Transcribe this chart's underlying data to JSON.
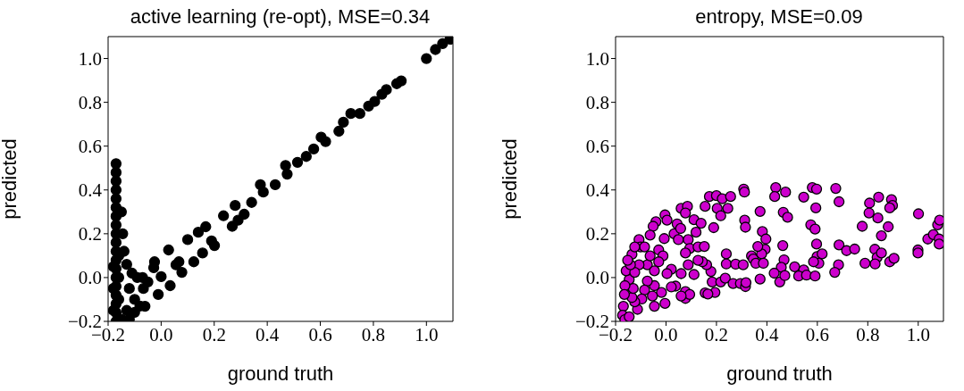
{
  "chart_data": [
    {
      "type": "scatter",
      "title": "active learning (re-opt), MSE=0.34",
      "xlabel": "ground truth",
      "ylabel": "predicted",
      "xlim": [
        -0.2,
        1.1
      ],
      "ylim": [
        -0.2,
        1.1
      ],
      "xticks": [
        {
          "value": -0.2,
          "label": "−0.2"
        },
        {
          "value": 0,
          "label": "0.0"
        },
        0.2,
        0.4,
        0.6,
        0.8,
        {
          "value": 1,
          "label": "1.0"
        }
      ],
      "yticks": [
        {
          "value": -0.2,
          "label": "−0.2"
        },
        {
          "value": 0,
          "label": "0.0"
        },
        0.2,
        0.4,
        0.6,
        0.8,
        {
          "value": 1,
          "label": "1.0"
        }
      ],
      "grid": false,
      "marker": "circle",
      "series": [
        {
          "color": "#000000",
          "x": [
            -0.17,
            -0.17,
            -0.17,
            -0.17,
            -0.17,
            -0.17,
            -0.17,
            -0.17,
            -0.17,
            -0.17,
            -0.17,
            -0.17,
            -0.17,
            -0.17,
            -0.17,
            -0.17,
            -0.17,
            -0.17,
            -0.17,
            -0.16,
            -0.16,
            -0.16,
            -0.18,
            -0.18,
            -0.18,
            -0.15,
            -0.145,
            -0.14,
            -0.13,
            -0.11,
            -0.09,
            -0.07,
            -0.05,
            -0.12,
            -0.1,
            -0.13,
            -0.15,
            -0.12,
            -0.08,
            -0.067,
            -0.061,
            -0.1,
            -0.025,
            -0.028,
            0.028,
            0.067,
            0.1,
            0.14,
            0.168,
            0.19,
            0.235,
            0.268,
            0.279,
            0.29,
            0.313,
            0.341,
            0.374,
            0.385,
            0.43,
            0.469,
            0.475,
            0.514,
            0.547,
            0.575,
            0.603,
            0.62,
            0.67,
            0.687,
            0.715,
            0.749,
            0.782,
            0.805,
            0.832,
            0.849,
            0.888,
            0.905,
            1.0,
            1.034,
            1.061,
            1.089,
            -0.011,
            0.034,
            0.078,
            0.123,
            0.156,
            0.201,
            0,
            0.056
          ],
          "values": [
            -0.2,
            -0.16,
            -0.12,
            -0.08,
            -0.04,
            0,
            0.04,
            0.08,
            0.12,
            0.16,
            0.2,
            0.24,
            0.28,
            0.32,
            0.36,
            0.4,
            0.44,
            0.48,
            0.52,
            -0.1,
            0.0,
            0.1,
            -0.15,
            -0.05,
            0.05,
            0.3,
            0.2,
            0.12,
            0.06,
            0.02,
            0.0,
            0.0,
            -0.02,
            -0.05,
            -0.1,
            -0.15,
            -0.19,
            -0.19,
            -0.13,
            -0.05,
            -0.131,
            -0.159,
            0.072,
            0.045,
            0.126,
            0.072,
            0.173,
            0.207,
            0.232,
            0.167,
            0.282,
            0.234,
            0.329,
            0.262,
            0.289,
            0.343,
            0.424,
            0.39,
            0.424,
            0.512,
            0.472,
            0.526,
            0.553,
            0.587,
            0.641,
            0.621,
            0.668,
            0.709,
            0.749,
            0.749,
            0.783,
            0.804,
            0.837,
            0.858,
            0.885,
            0.898,
            1.0,
            1.041,
            1.068,
            1.088,
            -0.077,
            -0.037,
            0.024,
            0.072,
            0.112,
            0.146,
            0.004,
            0.058
          ]
        }
      ]
    },
    {
      "type": "scatter",
      "title": "entropy, MSE=0.09",
      "xlabel": "ground truth",
      "ylabel": "predicted",
      "xlim": [
        -0.2,
        1.1
      ],
      "ylim": [
        -0.2,
        1.1
      ],
      "xticks": [
        {
          "value": -0.2,
          "label": "−0.2"
        },
        {
          "value": 0,
          "label": "0.0"
        },
        0.2,
        0.4,
        0.6,
        0.8,
        {
          "value": 1,
          "label": "1.0"
        }
      ],
      "yticks": [
        {
          "value": -0.2,
          "label": "−0.2"
        },
        {
          "value": 0,
          "label": "0.0"
        },
        0.2,
        0.4,
        0.6,
        0.8,
        {
          "value": 1,
          "label": "1.0"
        }
      ],
      "grid": false,
      "marker": "circle",
      "series": [
        {
          "color": "#cc00cc",
          "x": [
            0.308,
            0.311,
            0.435,
            0.431,
            0.474,
            0.58,
            0.597,
            0.673,
            0.686,
            0.546,
            0.172,
            0.2,
            0.223,
            0.256,
            0.155,
            0.203,
            0.245,
            0.217,
            0.06,
            0.085,
            0.077,
            -0.004,
            0.004,
            0.111,
            0.139,
            0.119,
            0.044,
            0.032,
            0.058,
            0.049,
            -0.007,
            -0.04,
            -0.051,
            -0.063,
            -0.107,
            -0.101,
            -0.135,
            -0.085,
            -0.124,
            -0.029,
            -0.012,
            0.088,
            0.094,
            0.077,
            0.127,
            0.152,
            0.189,
            0.312,
            0.315,
            0.373,
            0.382,
            0.396,
            0.393,
            0.379,
            0.364,
            0.239,
            0.239,
            0.276,
            0.306,
            0.339,
            0.346,
            0.356,
            0.386,
            0.465,
            0.482,
            0.463,
            0.468,
            0.457,
            0.429,
            0.451,
            0.471,
            0.51,
            0.546,
            0.526,
            0.557,
            0.591,
            0.574,
            0.591,
            0.594,
            0.597,
            0.599,
            0.606,
            0.619,
            0.585,
            0.686,
            0.716,
            0.748,
            0.684,
            0.669,
            0.778,
            0.807,
            0.805,
            0.843,
            0.84,
            0.854,
            0.828,
            0.837,
            0.854,
            0.829,
            0.789,
            0.881,
            0.894,
            0.898,
            0.887,
            0.887,
            0.904,
            1.001,
            0.999,
            0.999,
            1.038,
            1.06,
            1.077,
            1.085,
            1.083,
            1.083,
            0.183,
            0.217,
            0.194,
            0.155,
            0.166,
            0.235,
            0.266,
            0.295,
            0.315,
            0.317,
            0.373,
            0.178,
            0.161,
            0.144,
            0.127,
            0.111,
            0.088,
            0.06,
            0.021,
            0.004,
            0.038,
            0.077,
            0.077,
            0.094,
            0.06,
            0.021,
            -0.004,
            -0.018,
            -0.046,
            -0.046,
            -0.054,
            -0.074,
            -0.085,
            -0.096,
            -0.113,
            -0.124,
            -0.135,
            -0.13,
            -0.146,
            -0.158,
            -0.163,
            -0.165,
            -0.169,
            -0.172,
            -0.163,
            -0.146,
            -0.074,
            -0.046,
            -0.107,
            -0.124,
            -0.141,
            -0.152,
            -0.029,
            -0.063
          ],
          "values": [
            0.404,
            0.39,
            0.411,
            0.37,
            0.39,
            0.411,
            0.404,
            0.407,
            0.346,
            0.367,
            0.37,
            0.374,
            0.36,
            0.37,
            0.325,
            0.316,
            0.316,
            0.282,
            0.316,
            0.325,
            0.295,
            0.286,
            0.262,
            0.264,
            0.248,
            0.207,
            0.245,
            0.2,
            0.224,
            0.173,
            0.178,
            0.255,
            0.234,
            0.194,
            0.173,
            0.14,
            0.106,
            0.14,
            0.14,
            0.126,
            0.099,
            0.173,
            0.133,
            0.112,
            0.14,
            0.142,
            0.228,
            0.262,
            0.23,
            0.302,
            0.21,
            0.176,
            0.129,
            0.108,
            0.142,
            0.108,
            0.062,
            0.061,
            0.058,
            0.099,
            0.085,
            0.065,
            0.065,
            0.298,
            0.275,
            0.146,
            0.081,
            0.047,
            0.02,
            -0.02,
            0.009,
            0.049,
            0.035,
            0.007,
            0.011,
            0.007,
            0.241,
            0.221,
            0.318,
            0.153,
            0.096,
            0.065,
            0.108,
            0.072,
            0.149,
            0.123,
            0.13,
            0.058,
            0.024,
            0.234,
            0.34,
            0.295,
            0.367,
            0.272,
            0.191,
            0.129,
            0.092,
            0.112,
            0.062,
            0.065,
            0.232,
            0.356,
            0.329,
            0.318,
            0.072,
            0.088,
            0.291,
            0.126,
            0.112,
            0.176,
            0.196,
            0.241,
            0.262,
            0.176,
            0.153,
            -0.02,
            -0.02,
            -0.068,
            -0.07,
            -0.075,
            -0.003,
            -0.027,
            -0.027,
            -0.041,
            -0.023,
            -0.007,
            0.028,
            0.058,
            0.072,
            0.079,
            0.014,
            0.058,
            0.018,
            0.038,
            0.018,
            -0.039,
            -0.064,
            -0.095,
            -0.077,
            -0.084,
            -0.043,
            -0.118,
            -0.068,
            -0.037,
            -0.131,
            -0.084,
            -0.016,
            -0.057,
            -0.098,
            -0.145,
            -0.111,
            -0.091,
            -0.05,
            -0.009,
            0.031,
            -0.037,
            -0.077,
            -0.131,
            -0.172,
            -0.192,
            -0.179,
            0.058,
            0.031,
            0.058,
            0.024,
            0.058,
            0.079,
            0.072,
            0.099
          ]
        }
      ]
    }
  ]
}
